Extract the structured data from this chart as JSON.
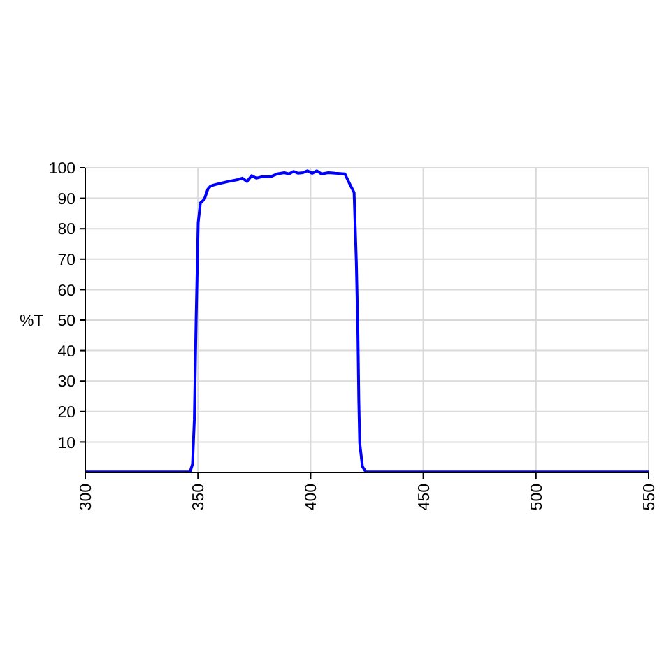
{
  "chart_data": {
    "type": "line",
    "ylabel": "%T",
    "x": [
      300,
      346.5,
      347.6,
      348.4,
      348.8,
      349.2,
      350.1,
      351.1,
      352.8,
      354.4,
      355.6,
      357.3,
      359.4,
      363.5,
      367.6,
      369.7,
      371.8,
      373.8,
      375.9,
      378,
      382,
      385.2,
      388.3,
      390.4,
      392.4,
      394.5,
      396.6,
      398.6,
      400.7,
      402.8,
      404.8,
      407.9,
      411,
      415.2,
      417.7,
      419.3,
      420.3,
      421,
      421.4,
      421.8,
      423,
      424.5,
      550
    ],
    "series": [
      {
        "color": "#0000ff",
        "values": [
          0.2,
          0.2,
          2.8,
          17.4,
          34,
          50.5,
          82,
          88.5,
          89.6,
          93,
          94,
          94.4,
          94.8,
          95.5,
          96.1,
          96.6,
          95.5,
          97.4,
          96.6,
          97,
          97,
          98,
          98.4,
          98,
          98.8,
          98.2,
          98.4,
          99,
          98.2,
          99,
          98,
          98.4,
          98.2,
          98,
          94.2,
          91.9,
          68.9,
          45,
          23.5,
          9.7,
          2,
          0.2,
          0.2
        ]
      }
    ],
    "xlim": [
      300,
      550
    ],
    "xticks": [
      300,
      350,
      400,
      450,
      500,
      550
    ],
    "ylim": [
      0,
      100
    ],
    "yticks": [
      10,
      20,
      30,
      40,
      50,
      60,
      70,
      80,
      90,
      100
    ],
    "grid": true,
    "line_style": "solid"
  }
}
